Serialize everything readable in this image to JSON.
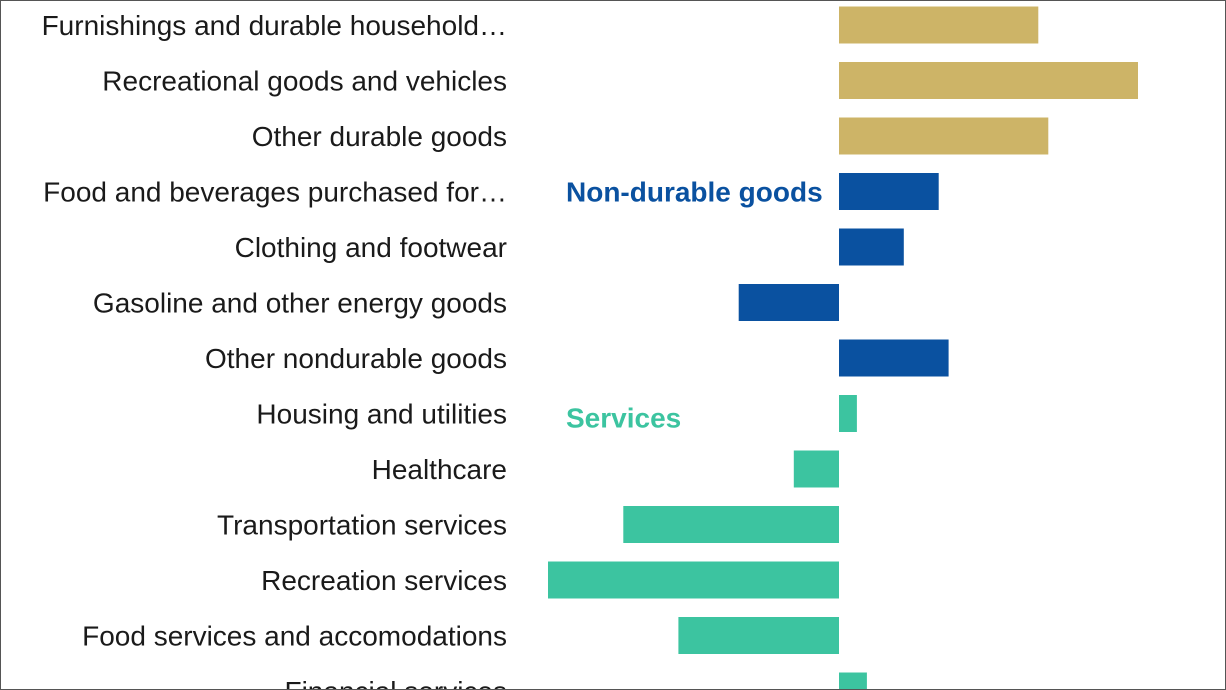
{
  "chart_data": {
    "type": "bar",
    "orientation": "horizontal",
    "categories": [
      "Furnishings and durable household…",
      "Recreational goods and vehicles",
      "Other durable goods",
      "Food and beverages purchased for…",
      "Clothing and footwear",
      "Gasoline and other energy goods",
      "Other nondurable goods",
      "Housing and utilities",
      "Healthcare",
      "Transportation services",
      "Recreation services",
      "Food services and accomodations",
      "Financial services"
    ],
    "values": [
      2.0,
      3.0,
      2.1,
      1.0,
      0.65,
      -1.0,
      1.1,
      0.18,
      -0.45,
      -2.15,
      -2.9,
      -1.6,
      0.28
    ],
    "groups": [
      "durable",
      "durable",
      "durable",
      "nondurable",
      "nondurable",
      "nondurable",
      "nondurable",
      "services",
      "services",
      "services",
      "services",
      "services",
      "services"
    ],
    "group_labels": [
      {
        "key": "nondurable",
        "text": "Non-durable goods",
        "at_category": 3
      },
      {
        "key": "services",
        "text": "Services",
        "at_category": 7
      }
    ],
    "group_colors": {
      "durable": "#cdb467",
      "nondurable": "#0a51a0",
      "services": "#3cc4a0"
    },
    "xlim": [
      -2.9,
      3.0
    ],
    "grid": false,
    "legend": "none"
  }
}
